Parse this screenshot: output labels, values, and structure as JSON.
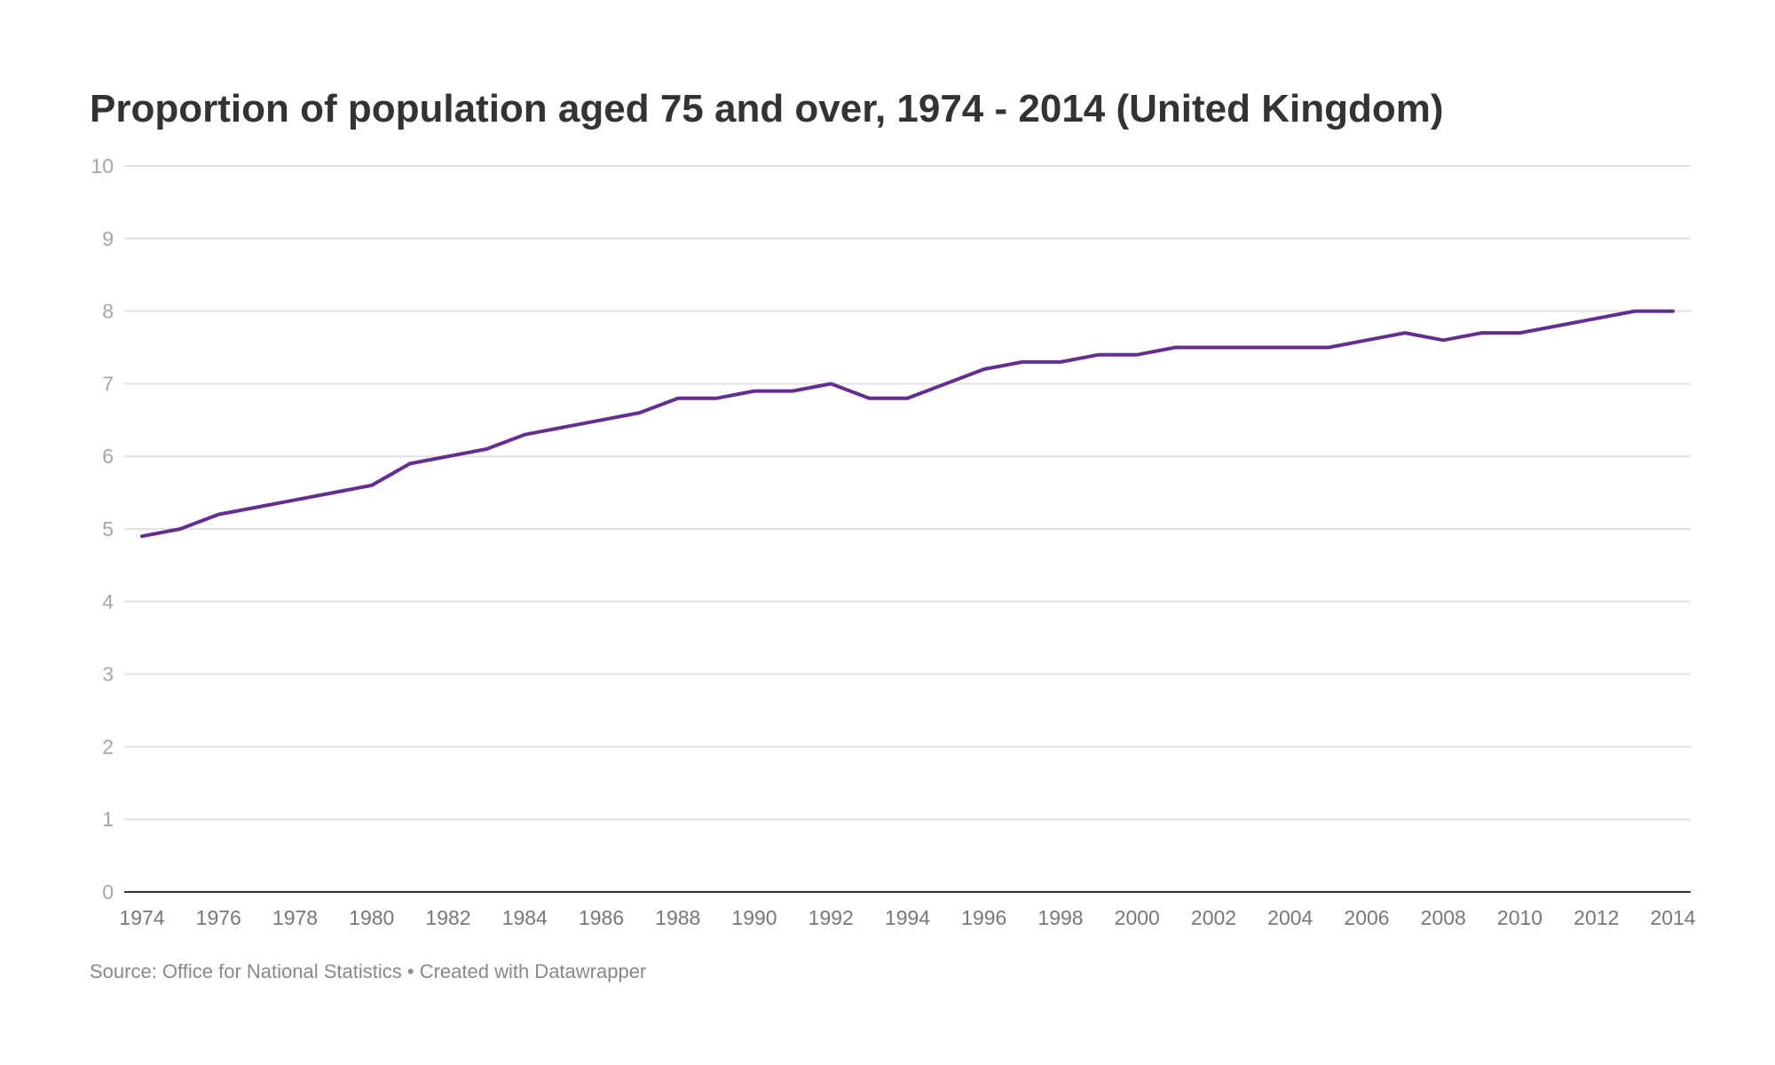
{
  "title": "Proportion of population aged 75 and over, 1974 - 2014 (United Kingdom)",
  "footer": {
    "source": "Source: Office for National Statistics",
    "separator": " • ",
    "credit": "Created with Datawrapper"
  },
  "colors": {
    "line": "#662d91",
    "grid": "#e3e3e3",
    "baseline": "#333333"
  },
  "chart_data": {
    "type": "line",
    "title": "Proportion of population aged 75 and over, 1974 - 2014 (United Kingdom)",
    "xlabel": "",
    "ylabel": "",
    "ylim": [
      0,
      10
    ],
    "xlim": [
      1974,
      2014
    ],
    "yticks": [
      "0",
      "1",
      "2",
      "3",
      "4",
      "5",
      "6",
      "7",
      "8",
      "9",
      "10"
    ],
    "xticks": [
      "1974",
      "1976",
      "1978",
      "1980",
      "1982",
      "1984",
      "1986",
      "1988",
      "1990",
      "1992",
      "1994",
      "1996",
      "1998",
      "2000",
      "2002",
      "2004",
      "2006",
      "2008",
      "2010",
      "2012",
      "2014"
    ],
    "grid": true,
    "series": [
      {
        "x": [
          1974,
          1975,
          1976,
          1977,
          1978,
          1979,
          1980,
          1981,
          1982,
          1983,
          1984,
          1985,
          1986,
          1987,
          1988,
          1989,
          1990,
          1991,
          1992,
          1993,
          1994,
          1995,
          1996,
          1997,
          1998,
          1999,
          2000,
          2001,
          2002,
          2003,
          2004,
          2005,
          2006,
          2007,
          2008,
          2009,
          2010,
          2011,
          2012,
          2013,
          2014
        ],
        "values": [
          4.9,
          5.0,
          5.2,
          5.3,
          5.4,
          5.5,
          5.6,
          5.9,
          6.0,
          6.1,
          6.3,
          6.4,
          6.5,
          6.6,
          6.8,
          6.8,
          6.9,
          6.9,
          7.0,
          6.8,
          6.8,
          7.0,
          7.2,
          7.3,
          7.3,
          7.4,
          7.4,
          7.5,
          7.5,
          7.5,
          7.5,
          7.5,
          7.6,
          7.7,
          7.6,
          7.7,
          7.7,
          7.8,
          7.9,
          8.0,
          8.0
        ]
      }
    ]
  }
}
